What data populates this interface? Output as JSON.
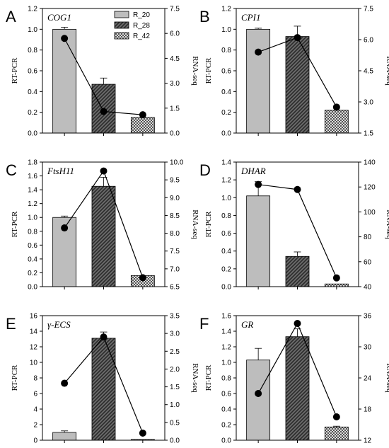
{
  "legend": {
    "entries": [
      {
        "name": "R_20",
        "pattern": "solid-gray"
      },
      {
        "name": "R_28",
        "pattern": "hatched-dark"
      },
      {
        "name": "R_42",
        "pattern": "crosshatch"
      }
    ]
  },
  "colors": {
    "solid": "#bdbdbd",
    "hatch": "#4a4a4a",
    "edge": "#000000",
    "line": "#000000"
  },
  "chart_data": [
    {
      "type": "bar",
      "panel": "A",
      "gene": "COG1",
      "categories": [
        "R_20",
        "R_28",
        "R_42"
      ],
      "series": [
        {
          "type": "bar",
          "axis": "left",
          "values": [
            1.0,
            0.47,
            0.15
          ],
          "errors": [
            0.02,
            0.06,
            0.0
          ]
        },
        {
          "type": "line",
          "axis": "right",
          "values": [
            5.7,
            1.3,
            1.1
          ]
        }
      ],
      "ylabel": "RT-PCR",
      "y2label": "RNA-seq",
      "ylim": [
        0,
        1.2
      ],
      "yticks": [
        "0.0",
        "0.2",
        "0.4",
        "0.6",
        "0.8",
        "1.0",
        "1.2"
      ],
      "y2lim": [
        0,
        7.5
      ],
      "y2ticks": [
        "0.0",
        "1.5",
        "3.0",
        "4.5",
        "6.0",
        "7.5"
      ]
    },
    {
      "type": "bar",
      "panel": "B",
      "gene": "CPI1",
      "categories": [
        "R_20",
        "R_28",
        "R_42"
      ],
      "series": [
        {
          "type": "bar",
          "axis": "left",
          "values": [
            1.0,
            0.93,
            0.22
          ],
          "errors": [
            0.01,
            0.1,
            0.0
          ]
        },
        {
          "type": "line",
          "axis": "right",
          "values": [
            5.4,
            6.1,
            2.75
          ]
        }
      ],
      "ylabel": "RT-PCR",
      "y2label": "RNA-seq",
      "ylim": [
        0,
        1.2
      ],
      "yticks": [
        "0.0",
        "0.2",
        "0.4",
        "0.6",
        "0.8",
        "1.0",
        "1.2"
      ],
      "y2lim": [
        1.5,
        7.5
      ],
      "y2ticks": [
        "1.5",
        "3.0",
        "4.5",
        "6.0",
        "7.5"
      ]
    },
    {
      "type": "bar",
      "panel": "C",
      "gene": "FtsH11",
      "categories": [
        "R_20",
        "R_28",
        "R_42"
      ],
      "series": [
        {
          "type": "bar",
          "axis": "left",
          "values": [
            1.0,
            1.45,
            0.16
          ],
          "errors": [
            0.02,
            0.13,
            0.0
          ]
        },
        {
          "type": "line",
          "axis": "right",
          "values": [
            8.15,
            9.75,
            6.75
          ]
        }
      ],
      "ylabel": "RT-PCR",
      "y2label": "RNA-seq",
      "ylim": [
        0,
        1.8
      ],
      "yticks": [
        "0.0",
        "0.2",
        "0.4",
        "0.6",
        "0.8",
        "1.0",
        "1.2",
        "1.4",
        "1.6",
        "1.8"
      ],
      "y2lim": [
        6.5,
        10.0
      ],
      "y2ticks": [
        "6.5",
        "7.0",
        "7.5",
        "8.0",
        "8.5",
        "9.0",
        "9.5",
        "10.0"
      ]
    },
    {
      "type": "bar",
      "panel": "D",
      "gene": "DHAR",
      "categories": [
        "R_20",
        "R_28",
        "R_42"
      ],
      "series": [
        {
          "type": "bar",
          "axis": "left",
          "values": [
            1.02,
            0.34,
            0.03
          ],
          "errors": [
            0.16,
            0.05,
            0.0
          ]
        },
        {
          "type": "line",
          "axis": "right",
          "values": [
            122,
            118,
            47
          ]
        }
      ],
      "ylabel": "RT-PCR",
      "y2label": "RNA-seq",
      "ylim": [
        0,
        1.4
      ],
      "yticks": [
        "0.0",
        "0.2",
        "0.4",
        "0.6",
        "0.8",
        "1.0",
        "1.2",
        "1.4"
      ],
      "y2lim": [
        40,
        140
      ],
      "y2ticks": [
        "40",
        "60",
        "80",
        "100",
        "120",
        "140"
      ]
    },
    {
      "type": "bar",
      "panel": "E",
      "gene": "γ-ECS",
      "categories": [
        "R_20",
        "R_28",
        "R_42"
      ],
      "series": [
        {
          "type": "bar",
          "axis": "left",
          "values": [
            1.0,
            13.1,
            0.1
          ],
          "errors": [
            0.2,
            0.8,
            0.0
          ]
        },
        {
          "type": "line",
          "axis": "right",
          "values": [
            1.6,
            2.9,
            0.2
          ]
        }
      ],
      "ylabel": "RT-PCR",
      "y2label": "RNA-seq",
      "ylim": [
        0,
        16
      ],
      "yticks": [
        "0",
        "2",
        "4",
        "6",
        "8",
        "10",
        "12",
        "14",
        "16"
      ],
      "y2lim": [
        0,
        3.5
      ],
      "y2ticks": [
        "0.0",
        "0.5",
        "1.0",
        "1.5",
        "2.0",
        "2.5",
        "3.0",
        "3.5"
      ]
    },
    {
      "type": "bar",
      "panel": "F",
      "gene": "GR",
      "categories": [
        "R_20",
        "R_28",
        "R_42"
      ],
      "series": [
        {
          "type": "bar",
          "axis": "left",
          "values": [
            1.03,
            1.33,
            0.17
          ],
          "errors": [
            0.15,
            0.1,
            0.01
          ]
        },
        {
          "type": "line",
          "axis": "right",
          "values": [
            21,
            34.5,
            16.5
          ]
        }
      ],
      "ylabel": "RT-PCR",
      "y2label": "RNA-seq",
      "ylim": [
        0,
        1.6
      ],
      "yticks": [
        "0.0",
        "0.2",
        "0.4",
        "0.6",
        "0.8",
        "1.0",
        "1.2",
        "1.4",
        "1.6"
      ],
      "y2lim": [
        12,
        36
      ],
      "y2ticks": [
        "12",
        "18",
        "24",
        "30",
        "36"
      ]
    }
  ]
}
